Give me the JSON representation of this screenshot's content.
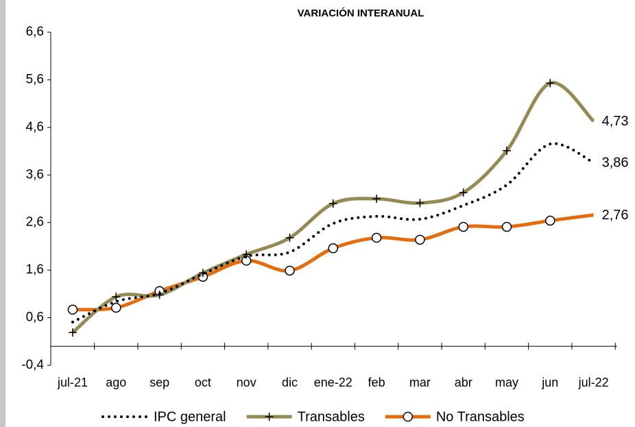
{
  "chart_data": {
    "type": "line",
    "title": "VARIACIÓN INTERANUAL",
    "categories": [
      "jul-21",
      "ago",
      "sep",
      "oct",
      "nov",
      "dic",
      "ene-22",
      "feb",
      "mar",
      "abr",
      "may",
      "jun",
      "jul-22"
    ],
    "ylim": [
      -0.4,
      6.6
    ],
    "yticks": [
      {
        "value": -0.4,
        "label": "-0,4"
      },
      {
        "value": 0.6,
        "label": "0,6"
      },
      {
        "value": 1.6,
        "label": "1,6"
      },
      {
        "value": 2.6,
        "label": "2,6"
      },
      {
        "value": 3.6,
        "label": "3,6"
      },
      {
        "value": 4.6,
        "label": "4,6"
      },
      {
        "value": 5.6,
        "label": "5,6"
      },
      {
        "value": 6.6,
        "label": "6,6"
      }
    ],
    "series": [
      {
        "name": "IPC general",
        "color": "#000000",
        "style": "dotted",
        "values": [
          0.51,
          0.94,
          1.11,
          1.52,
          1.89,
          1.98,
          2.58,
          2.73,
          2.67,
          2.96,
          3.39,
          4.25,
          3.86
        ],
        "value_labels": [
          null,
          null,
          null,
          null,
          null,
          null,
          null,
          null,
          null,
          null,
          null,
          null,
          "3,86"
        ]
      },
      {
        "name": "Transables",
        "color": "#948a54",
        "style": "plus",
        "values": [
          0.29,
          1.04,
          1.08,
          1.54,
          1.93,
          2.28,
          3.0,
          3.1,
          3.01,
          3.23,
          4.11,
          5.53,
          4.73
        ],
        "value_labels": [
          null,
          null,
          null,
          null,
          null,
          null,
          null,
          null,
          null,
          null,
          null,
          null,
          "4,73"
        ]
      },
      {
        "name": "No Transables",
        "color": "#e46c0a",
        "style": "circle",
        "values": [
          0.77,
          0.81,
          1.16,
          1.46,
          1.8,
          1.59,
          2.06,
          2.28,
          2.24,
          2.51,
          2.51,
          2.64,
          2.76
        ],
        "value_labels": [
          null,
          null,
          null,
          null,
          null,
          null,
          null,
          null,
          null,
          null,
          null,
          null,
          "2,76"
        ]
      }
    ]
  }
}
